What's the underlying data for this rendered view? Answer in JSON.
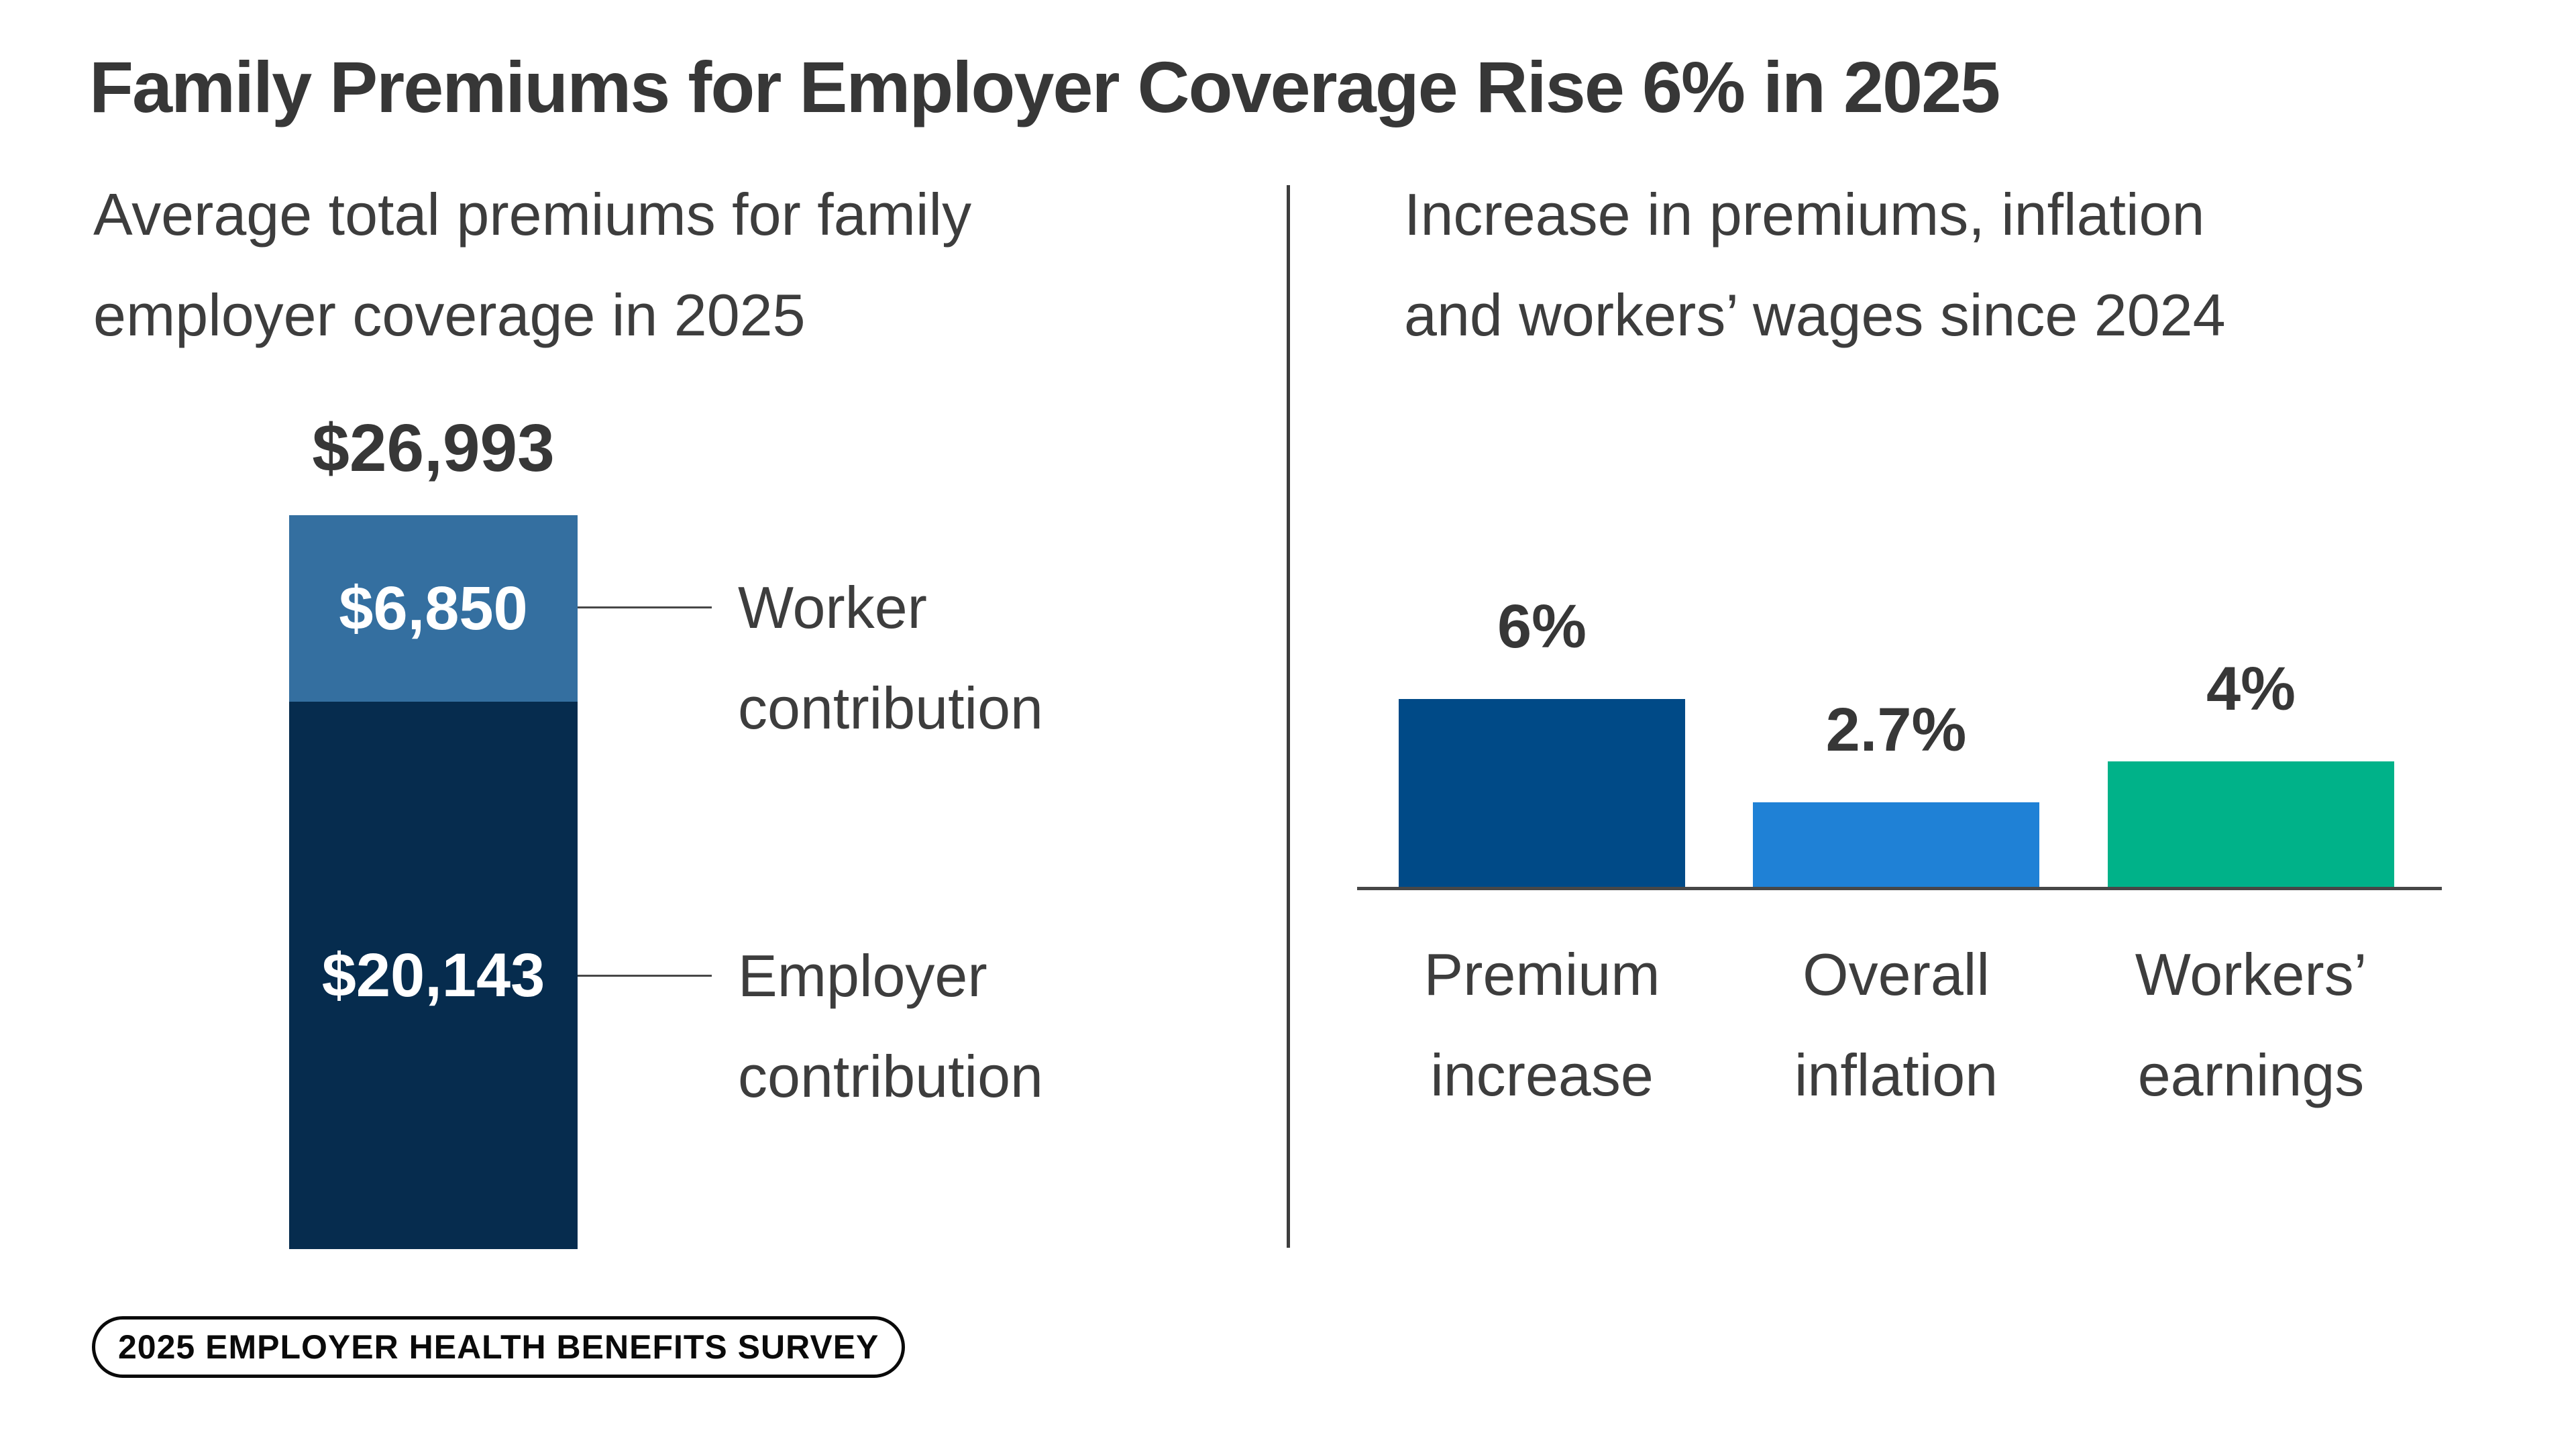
{
  "title": "Family Premiums for Employer Coverage Rise 6% in 2025",
  "badge": {
    "label": "2025 EMPLOYER HEALTH BENEFITS SURVEY"
  },
  "colors": {
    "text_dark": "#373737",
    "text_body": "#3d3d3d",
    "line": "#474747",
    "worker_blue": "#346fa0",
    "employer_navy": "#062c4e",
    "premium_blue": "#004a87",
    "inflation_blue": "#1f81d6",
    "earnings_green": "#00b289"
  },
  "chart_data": [
    {
      "type": "bar",
      "subtype": "stacked-single-column",
      "title": "Average total premiums for family employer coverage in 2025",
      "title_lines": [
        "Average total premiums for family",
        "employer coverage in 2025"
      ],
      "categories": [
        "Family employer coverage 2025"
      ],
      "unit": "USD",
      "total": 26993,
      "total_label": "$26,993",
      "series": [
        {
          "name": "Worker contribution",
          "label_lines": [
            "Worker",
            "contribution"
          ],
          "values": [
            6850
          ],
          "value_label": "$6,850",
          "color": "#346fa0"
        },
        {
          "name": "Employer contribution",
          "label_lines": [
            "Employer",
            "contribution"
          ],
          "values": [
            20143
          ],
          "value_label": "$20,143",
          "color": "#062c4e"
        }
      ],
      "legend_position": "right-of-bar",
      "grid": false
    },
    {
      "type": "bar",
      "title": "Increase in premiums, inflation and workers’ wages since 2024",
      "title_lines": [
        "Increase in premiums, inflation",
        "and workers’ wages since 2024"
      ],
      "categories": [
        "Premium increase",
        "Overall inflation",
        "Workers’ earnings"
      ],
      "category_lines": [
        [
          "Premium",
          "increase"
        ],
        [
          "Overall",
          "inflation"
        ],
        [
          "Workers’",
          "earnings"
        ]
      ],
      "values": [
        6,
        2.7,
        4
      ],
      "value_labels": [
        "6%",
        "2.7%",
        "4%"
      ],
      "colors": [
        "#004a87",
        "#1f81d6",
        "#00b289"
      ],
      "unit": "percent",
      "ylim": [
        0,
        6.5
      ],
      "grid": false,
      "axis_labels_visible": false
    }
  ]
}
